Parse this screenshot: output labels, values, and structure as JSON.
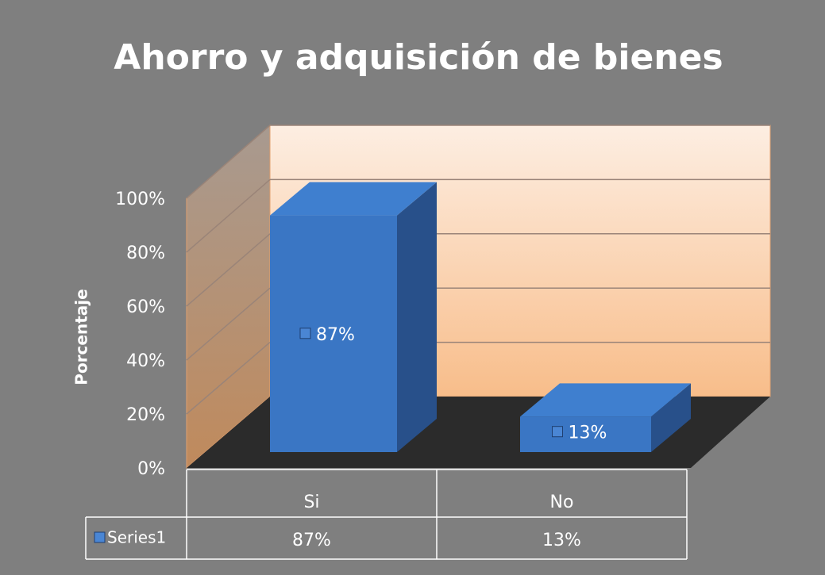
{
  "chart_data": {
    "type": "bar3d",
    "title": "Ahorro y adquisición de bienes",
    "ylabel": "Porcentaje",
    "categories": [
      "Si",
      "No"
    ],
    "series": [
      {
        "name": "Series1",
        "color": "#3a76c4",
        "values": [
          87,
          13
        ],
        "value_labels": [
          "87%",
          "13%"
        ]
      }
    ],
    "ylim": [
      0,
      100
    ],
    "yticks": [
      {
        "value": 0,
        "label": "0%"
      },
      {
        "value": 20,
        "label": "20%"
      },
      {
        "value": 40,
        "label": "40%"
      },
      {
        "value": 60,
        "label": "60%"
      },
      {
        "value": 80,
        "label": "80%"
      },
      {
        "value": 100,
        "label": "100%"
      }
    ],
    "grid": true,
    "data_table": true
  }
}
